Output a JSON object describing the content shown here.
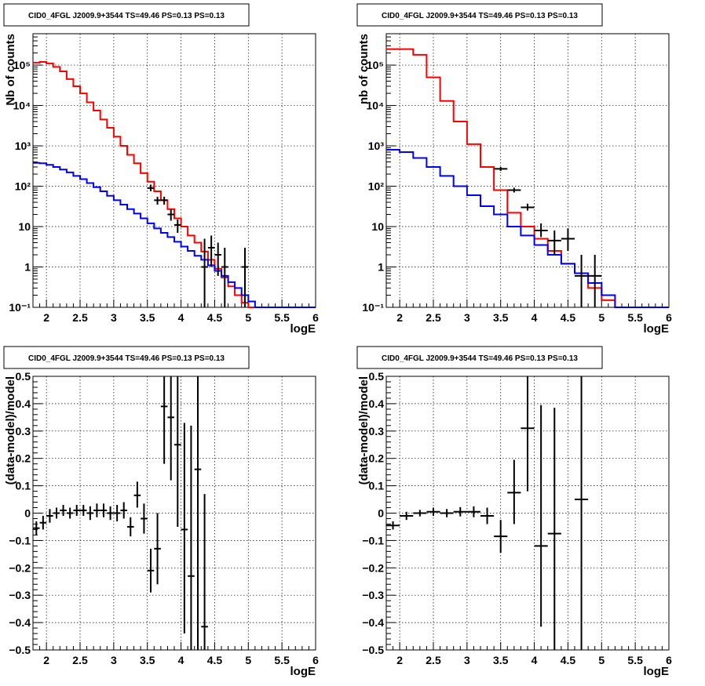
{
  "chart_data": [
    {
      "type": "line",
      "title": "CID0_4FGL J2009.9+3544 TS=49.46 PS=0.13 PS=0.13",
      "xlabel": "logE",
      "ylabel": "Nb of counts",
      "xlim": [
        1.8,
        6.0
      ],
      "ylim": [
        0.1,
        600000
      ],
      "ylog": true,
      "xticks": [
        2,
        2.5,
        3,
        3.5,
        4,
        4.5,
        5,
        5.5,
        6
      ],
      "xticklabels": [
        "2",
        "2.5",
        "3",
        "3.5",
        "4",
        "4.5",
        "5",
        "5.5",
        "6"
      ],
      "yticks": [
        0.1,
        1,
        10,
        100,
        1000,
        10000,
        100000
      ],
      "yticklabels": [
        "10⁻¹",
        "1",
        "10",
        "10²",
        "10³",
        "10⁴",
        "10⁵"
      ],
      "grid": true,
      "series": [
        {
          "style": "step",
          "color": "#ff0000",
          "edges": [
            1.8,
            1.9,
            2.0,
            2.1,
            2.2,
            2.3,
            2.4,
            2.5,
            2.6,
            2.7,
            2.8,
            2.9,
            3.0,
            3.1,
            3.2,
            3.3,
            3.4,
            3.5,
            3.6,
            3.7,
            3.8,
            3.9,
            4.0,
            4.1,
            4.2,
            4.3,
            4.4,
            4.5,
            4.6,
            4.7,
            4.8,
            4.9,
            5.0,
            5.1,
            5.2,
            5.3,
            5.4,
            5.5,
            5.6,
            5.7,
            5.8,
            5.9,
            6.0
          ],
          "values": [
            115000,
            120000,
            110000,
            90000,
            70000,
            45000,
            30000,
            20000,
            12000,
            7500,
            4500,
            2800,
            1700,
            1000,
            600,
            370,
            210,
            130,
            75,
            45,
            27,
            16,
            10,
            6,
            4,
            2.4,
            1.5,
            0.9,
            0.55,
            0.33,
            0.2,
            0.13,
            0.1,
            0.1,
            0.1,
            0.1,
            0.1,
            0.1,
            0.1,
            0.1,
            0.1,
            0.1
          ]
        },
        {
          "style": "step",
          "color": "#0000ff",
          "edges": [
            1.8,
            1.9,
            2.0,
            2.1,
            2.2,
            2.3,
            2.4,
            2.5,
            2.6,
            2.7,
            2.8,
            2.9,
            3.0,
            3.1,
            3.2,
            3.3,
            3.4,
            3.5,
            3.6,
            3.7,
            3.8,
            3.9,
            4.0,
            4.1,
            4.2,
            4.3,
            4.4,
            4.5,
            4.6,
            4.7,
            4.8,
            4.9,
            5.0,
            5.1,
            5.2,
            5.3,
            5.4,
            5.5,
            5.6,
            5.7,
            5.8,
            5.9,
            6.0
          ],
          "values": [
            380,
            370,
            340,
            300,
            260,
            220,
            180,
            150,
            120,
            95,
            75,
            58,
            45,
            35,
            27,
            21,
            16,
            12,
            9,
            7,
            5.5,
            4.2,
            3.2,
            2.5,
            1.9,
            1.5,
            1.1,
            0.8,
            0.6,
            0.42,
            0.3,
            0.2,
            0.14,
            0.1,
            0.1,
            0.1,
            0.1,
            0.1,
            0.1,
            0.1,
            0.1,
            0.1
          ]
        },
        {
          "style": "errorbar",
          "color": "#000000",
          "x": [
            3.55,
            3.65,
            3.75,
            3.85,
            3.95,
            4.35,
            4.45,
            4.55,
            4.65,
            4.95
          ],
          "xerr": 0.05,
          "y": [
            90,
            45,
            45,
            20,
            11,
            1,
            3,
            2,
            1,
            1
          ],
          "ylow": [
            75,
            35,
            35,
            14,
            7,
            0.1,
            1,
            0.6,
            0.1,
            0.1
          ],
          "yhigh": [
            110,
            55,
            55,
            27,
            15,
            5,
            6,
            4,
            3,
            3
          ]
        }
      ]
    },
    {
      "type": "line",
      "title": "CID0_4FGL J2009.9+3544 TS=49.46 PS=0.13 PS=0.13",
      "xlabel": "logE",
      "ylabel": "nb of counts",
      "xlim": [
        1.8,
        6.0
      ],
      "ylim": [
        0.1,
        600000
      ],
      "ylog": true,
      "xticks": [
        2,
        2.5,
        3,
        3.5,
        4,
        4.5,
        5,
        5.5,
        6
      ],
      "xticklabels": [
        "2",
        "2.5",
        "3",
        "3.5",
        "4",
        "4.5",
        "5",
        "5.5",
        "6"
      ],
      "yticks": [
        0.1,
        1,
        10,
        100,
        1000,
        10000,
        100000
      ],
      "yticklabels": [
        "10⁻¹",
        "1",
        "10",
        "10²",
        "10³",
        "10⁴",
        "10⁵"
      ],
      "grid": true,
      "series": [
        {
          "style": "step",
          "color": "#ff0000",
          "edges": [
            1.8,
            2.0,
            2.2,
            2.4,
            2.6,
            2.8,
            3.0,
            3.2,
            3.4,
            3.6,
            3.8,
            4.0,
            4.2,
            4.4,
            4.6,
            4.8,
            5.0,
            5.2,
            5.4,
            5.6,
            5.8,
            6.0
          ],
          "values": [
            250000,
            250000,
            180000,
            50000,
            13000,
            4000,
            1100,
            300,
            80,
            22,
            10,
            5,
            2.5,
            1.2,
            0.7,
            0.3,
            0.15,
            0.1,
            0.1,
            0.1,
            0.1
          ]
        },
        {
          "style": "step",
          "color": "#0000ff",
          "edges": [
            1.8,
            2.0,
            2.2,
            2.4,
            2.6,
            2.8,
            3.0,
            3.2,
            3.4,
            3.6,
            3.8,
            4.0,
            4.2,
            4.4,
            4.6,
            4.8,
            5.0,
            5.2,
            5.4,
            5.6,
            5.8,
            6.0
          ],
          "values": [
            800,
            700,
            500,
            300,
            180,
            100,
            60,
            32,
            20,
            10,
            6,
            3.5,
            2,
            1.2,
            0.7,
            0.4,
            0.2,
            0.1,
            0.1,
            0.1,
            0.1
          ]
        },
        {
          "style": "errorbar",
          "color": "#000000",
          "x": [
            3.5,
            3.7,
            3.9,
            4.1,
            4.3,
            4.5,
            4.7,
            4.9
          ],
          "xerr": 0.1,
          "y": [
            270,
            80,
            30,
            8,
            4.5,
            5,
            0.6,
            0.6
          ],
          "ylow": [
            240,
            70,
            25,
            5.5,
            2,
            2.5,
            0.1,
            0.1
          ],
          "yhigh": [
            300,
            92,
            37,
            12,
            8,
            9,
            2,
            2
          ]
        }
      ]
    },
    {
      "type": "scatter",
      "title": "CID0_4FGL J2009.9+3544 TS=49.46 PS=0.13 PS=0.13",
      "xlabel": "logE",
      "ylabel": "(data-model)/model",
      "xlim": [
        1.8,
        6.0
      ],
      "ylim": [
        -0.5,
        0.5
      ],
      "ylog": false,
      "xticks": [
        2,
        2.5,
        3,
        3.5,
        4,
        4.5,
        5,
        5.5,
        6
      ],
      "xticklabels": [
        "2",
        "2.5",
        "3",
        "3.5",
        "4",
        "4.5",
        "5",
        "5.5",
        "6"
      ],
      "yticks": [
        -0.5,
        -0.4,
        -0.3,
        -0.2,
        -0.1,
        0,
        0.1,
        0.2,
        0.3,
        0.4,
        0.5
      ],
      "yticklabels": [
        "−0.5",
        "−0.4",
        "−0.3",
        "−0.2",
        "−0.1",
        "0",
        "0.1",
        "0.2",
        "0.3",
        "0.4",
        "0.5"
      ],
      "grid": true,
      "series": [
        {
          "style": "errorbar",
          "color": "#000000",
          "x": [
            1.85,
            1.95,
            2.05,
            2.15,
            2.25,
            2.35,
            2.45,
            2.55,
            2.65,
            2.75,
            2.85,
            2.95,
            3.05,
            3.15,
            3.25,
            3.35,
            3.45,
            3.55,
            3.65,
            3.75,
            3.85,
            3.95,
            4.05,
            4.15,
            4.25,
            4.35
          ],
          "xerr": 0.05,
          "y": [
            -0.055,
            -0.035,
            -0.01,
            0.0,
            0.01,
            0.0,
            0.01,
            0.01,
            0.0,
            0.01,
            0.01,
            0.0,
            0.0,
            0.01,
            -0.05,
            0.065,
            -0.02,
            -0.21,
            -0.13,
            0.39,
            0.35,
            0.25,
            -0.06,
            -0.23,
            0.16,
            -0.415
          ],
          "ylow": [
            -0.08,
            -0.06,
            -0.035,
            -0.02,
            -0.01,
            -0.02,
            -0.01,
            -0.01,
            -0.025,
            -0.015,
            -0.015,
            -0.025,
            -0.03,
            -0.02,
            -0.085,
            0.02,
            -0.075,
            -0.29,
            -0.26,
            0.18,
            0.12,
            -0.05,
            -0.44,
            -0.5,
            -0.5,
            -0.5
          ],
          "yhigh": [
            -0.03,
            -0.01,
            0.015,
            0.02,
            0.03,
            0.02,
            0.03,
            0.03,
            0.025,
            0.035,
            0.035,
            0.025,
            0.03,
            0.04,
            -0.015,
            0.115,
            0.035,
            -0.13,
            0.0,
            0.5,
            0.5,
            0.5,
            0.33,
            0.32,
            0.5,
            0.07
          ]
        }
      ]
    },
    {
      "type": "scatter",
      "title": "CID0_4FGL J2009.9+3544 TS=49.46 PS=0.13 PS=0.13",
      "xlabel": "logE",
      "ylabel": "(data-model)/model",
      "xlim": [
        1.8,
        6.0
      ],
      "ylim": [
        -0.5,
        0.5
      ],
      "ylog": false,
      "xticks": [
        2,
        2.5,
        3,
        3.5,
        4,
        4.5,
        5,
        5.5,
        6
      ],
      "xticklabels": [
        "2",
        "2.5",
        "3",
        "3.5",
        "4",
        "4.5",
        "5",
        "5.5",
        "6"
      ],
      "yticks": [
        -0.5,
        -0.4,
        -0.3,
        -0.2,
        -0.1,
        0,
        0.1,
        0.2,
        0.3,
        0.4,
        0.5
      ],
      "yticklabels": [
        "−0.5",
        "−0.4",
        "−0.3",
        "−0.2",
        "−0.1",
        "0",
        "0.1",
        "0.2",
        "0.3",
        "0.4",
        "0.5"
      ],
      "grid": true,
      "series": [
        {
          "style": "errorbar",
          "color": "#000000",
          "x": [
            1.9,
            2.1,
            2.3,
            2.5,
            2.7,
            2.9,
            3.1,
            3.3,
            3.5,
            3.7,
            3.9,
            4.1,
            4.3,
            4.7
          ],
          "xerr": 0.1,
          "y": [
            -0.045,
            -0.01,
            0.0,
            0.005,
            0.0,
            0.005,
            0.005,
            -0.01,
            -0.085,
            0.075,
            0.31,
            -0.12,
            -0.075,
            0.05
          ],
          "ylow": [
            -0.06,
            -0.025,
            -0.012,
            -0.01,
            -0.015,
            -0.012,
            -0.015,
            -0.04,
            -0.145,
            -0.04,
            0.08,
            -0.415,
            -0.5,
            -0.5
          ],
          "yhigh": [
            -0.03,
            0.005,
            0.012,
            0.02,
            0.015,
            0.022,
            0.025,
            0.02,
            -0.025,
            0.195,
            0.5,
            0.395,
            0.385,
            0.5
          ]
        }
      ]
    }
  ]
}
